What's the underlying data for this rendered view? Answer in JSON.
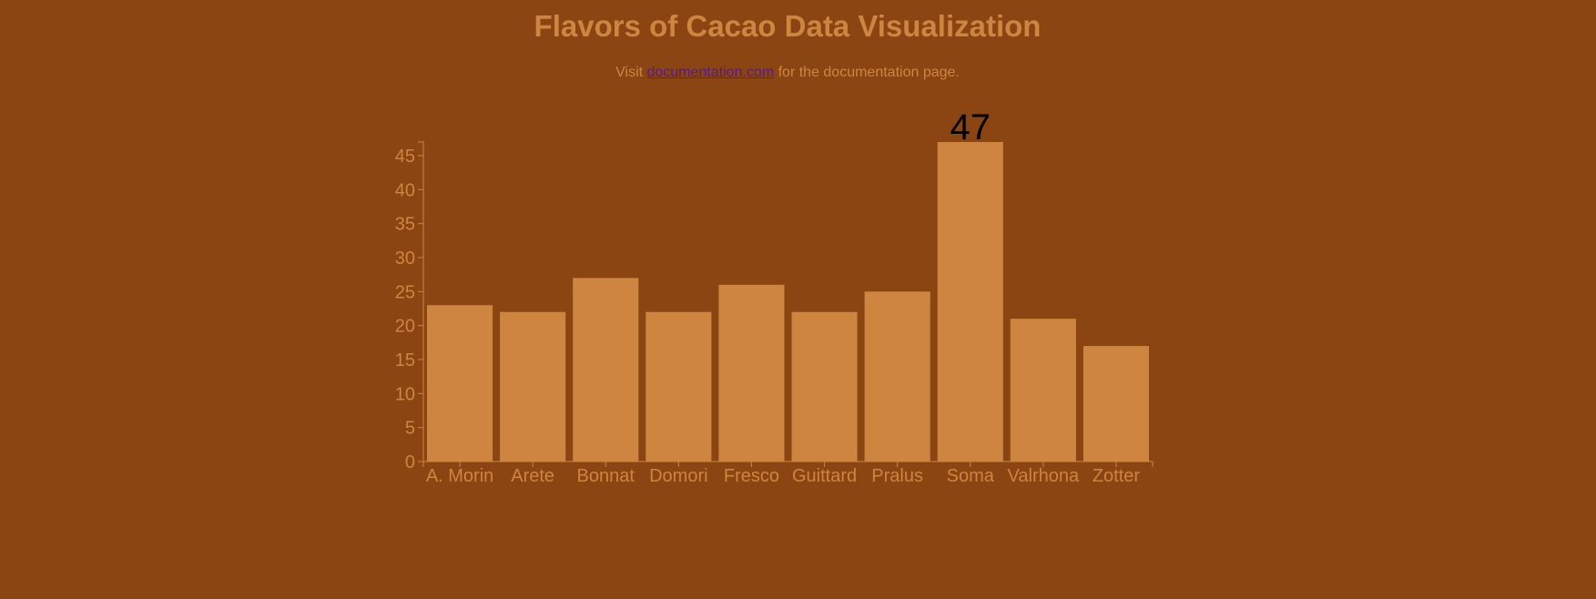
{
  "page": {
    "title": "Flavors of Cacao Data Visualization",
    "intro_prefix": "Visit ",
    "intro_link": "documentation.com",
    "intro_suffix": " for the documentation page."
  },
  "colors": {
    "background": "#8b4513",
    "accent": "#cd853f",
    "link": "#551a8b",
    "highlight_label": "#000000"
  },
  "chart_data": {
    "type": "bar",
    "title": "Flavors of Cacao Data Visualization",
    "xlabel": "",
    "ylabel": "",
    "categories": [
      "A. Morin",
      "Arete",
      "Bonnat",
      "Domori",
      "Fresco",
      "Guittard",
      "Pralus",
      "Soma",
      "Valrhona",
      "Zotter"
    ],
    "values": [
      23,
      22,
      27,
      22,
      26,
      22,
      25,
      47,
      21,
      17
    ],
    "ylim": [
      0,
      47
    ],
    "yticks": [
      0,
      5,
      10,
      15,
      20,
      25,
      30,
      35,
      40,
      45
    ],
    "data_labels": [
      {
        "category": "Soma",
        "text": "47"
      }
    ],
    "grid": false,
    "legend": "none"
  }
}
